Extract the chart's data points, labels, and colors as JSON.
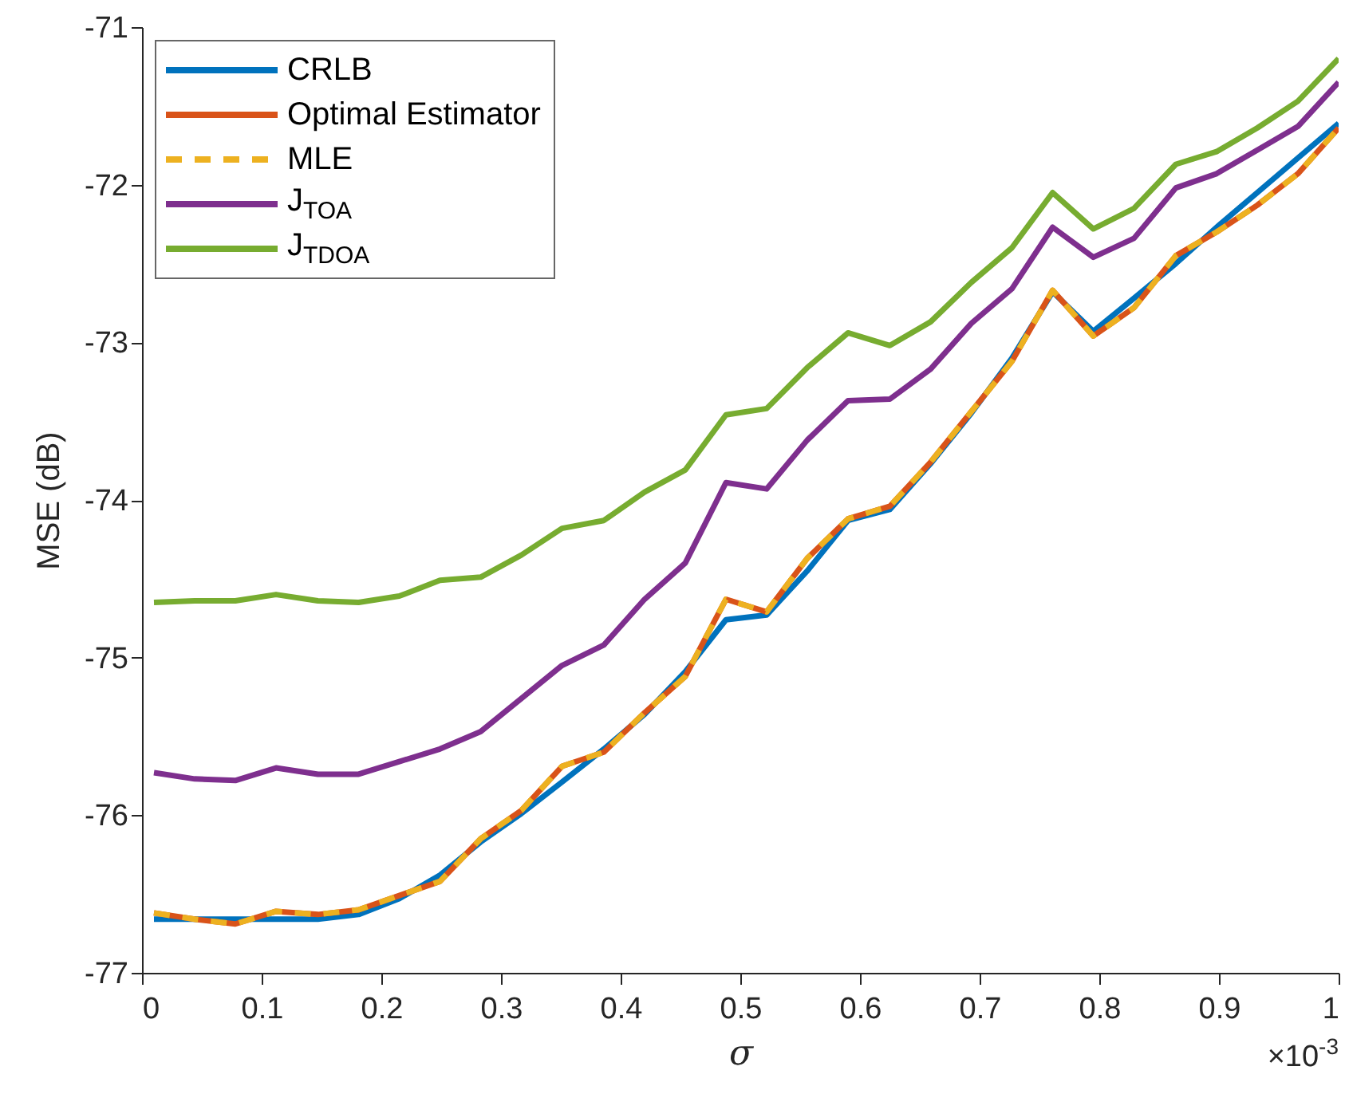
{
  "chart_data": {
    "type": "line",
    "xlabel": "σ",
    "ylabel": "MSE (dB)",
    "annotations": [
      "×10$^{-3}$"
    ],
    "x": [
      0.01,
      0.044,
      0.078,
      0.112,
      0.147,
      0.181,
      0.215,
      0.249,
      0.283,
      0.317,
      0.351,
      0.386,
      0.42,
      0.454,
      0.488,
      0.522,
      0.556,
      0.59,
      0.625,
      0.659,
      0.693,
      0.727,
      0.761,
      0.795,
      0.829,
      0.864,
      0.898,
      0.932,
      0.966,
      1.0
    ],
    "xlim": [
      0,
      1
    ],
    "xticks": [
      0,
      0.1,
      0.2,
      0.3,
      0.4,
      0.5,
      0.6,
      0.7,
      0.8,
      0.9,
      1
    ],
    "ylim": [
      -77,
      -71
    ],
    "yticks": [
      -77,
      -76,
      -75,
      -74,
      -73,
      -72,
      -71
    ],
    "grid": false,
    "legend": "top left",
    "marker": "none",
    "series": [
      {
        "name": "CRLB",
        "color": "#0072bd",
        "line_style": "solid",
        "values": [
          -76.66,
          -76.66,
          -76.66,
          -76.66,
          -76.66,
          -76.63,
          -76.53,
          -76.38,
          -76.17,
          -75.99,
          -75.79,
          -75.58,
          -75.36,
          -75.09,
          -74.76,
          -74.73,
          -74.45,
          -74.13,
          -74.06,
          -73.77,
          -73.45,
          -73.1,
          -72.68,
          -72.93,
          -72.72,
          -72.5,
          -72.27,
          -72.05,
          -71.83,
          -71.61
        ]
      },
      {
        "name": "Optimal Estimator",
        "color": "#d95319",
        "line_style": "solid",
        "values": [
          -76.62,
          -76.66,
          -76.69,
          -76.61,
          -76.63,
          -76.6,
          -76.51,
          -76.42,
          -76.15,
          -75.97,
          -75.69,
          -75.6,
          -75.35,
          -75.12,
          -74.63,
          -74.71,
          -74.37,
          -74.12,
          -74.04,
          -73.76,
          -73.44,
          -73.12,
          -72.67,
          -72.96,
          -72.78,
          -72.45,
          -72.3,
          -72.13,
          -71.93,
          -71.64
        ]
      },
      {
        "name": "MLE",
        "color": "#edb120",
        "line_style": "dashed",
        "values": [
          -76.62,
          -76.66,
          -76.69,
          -76.61,
          -76.63,
          -76.6,
          -76.51,
          -76.42,
          -76.15,
          -75.97,
          -75.69,
          -75.6,
          -75.35,
          -75.12,
          -74.63,
          -74.71,
          -74.37,
          -74.12,
          -74.04,
          -73.76,
          -73.44,
          -73.12,
          -72.67,
          -72.96,
          -72.78,
          -72.45,
          -72.3,
          -72.13,
          -71.93,
          -71.64
        ]
      },
      {
        "name": "J$_{TOA}$",
        "color": "#7e2f8e",
        "line_style": "solid",
        "values": [
          -75.73,
          -75.77,
          -75.78,
          -75.7,
          -75.74,
          -75.74,
          -75.66,
          -75.58,
          -75.47,
          -75.26,
          -75.05,
          -74.92,
          -74.63,
          -74.4,
          -73.89,
          -73.93,
          -73.62,
          -73.37,
          -73.36,
          -73.17,
          -72.88,
          -72.66,
          -72.27,
          -72.46,
          -72.34,
          -72.02,
          -71.93,
          -71.78,
          -71.63,
          -71.35
        ]
      },
      {
        "name": "J$_{TDOA}$",
        "color": "#77ac30",
        "line_style": "solid",
        "values": [
          -74.65,
          -74.64,
          -74.64,
          -74.6,
          -74.64,
          -74.65,
          -74.61,
          -74.51,
          -74.49,
          -74.35,
          -74.18,
          -74.13,
          -73.95,
          -73.81,
          -73.46,
          -73.42,
          -73.16,
          -72.94,
          -73.02,
          -72.87,
          -72.62,
          -72.4,
          -72.05,
          -72.28,
          -72.15,
          -71.87,
          -71.79,
          -71.64,
          -71.47,
          -71.2
        ]
      }
    ]
  }
}
